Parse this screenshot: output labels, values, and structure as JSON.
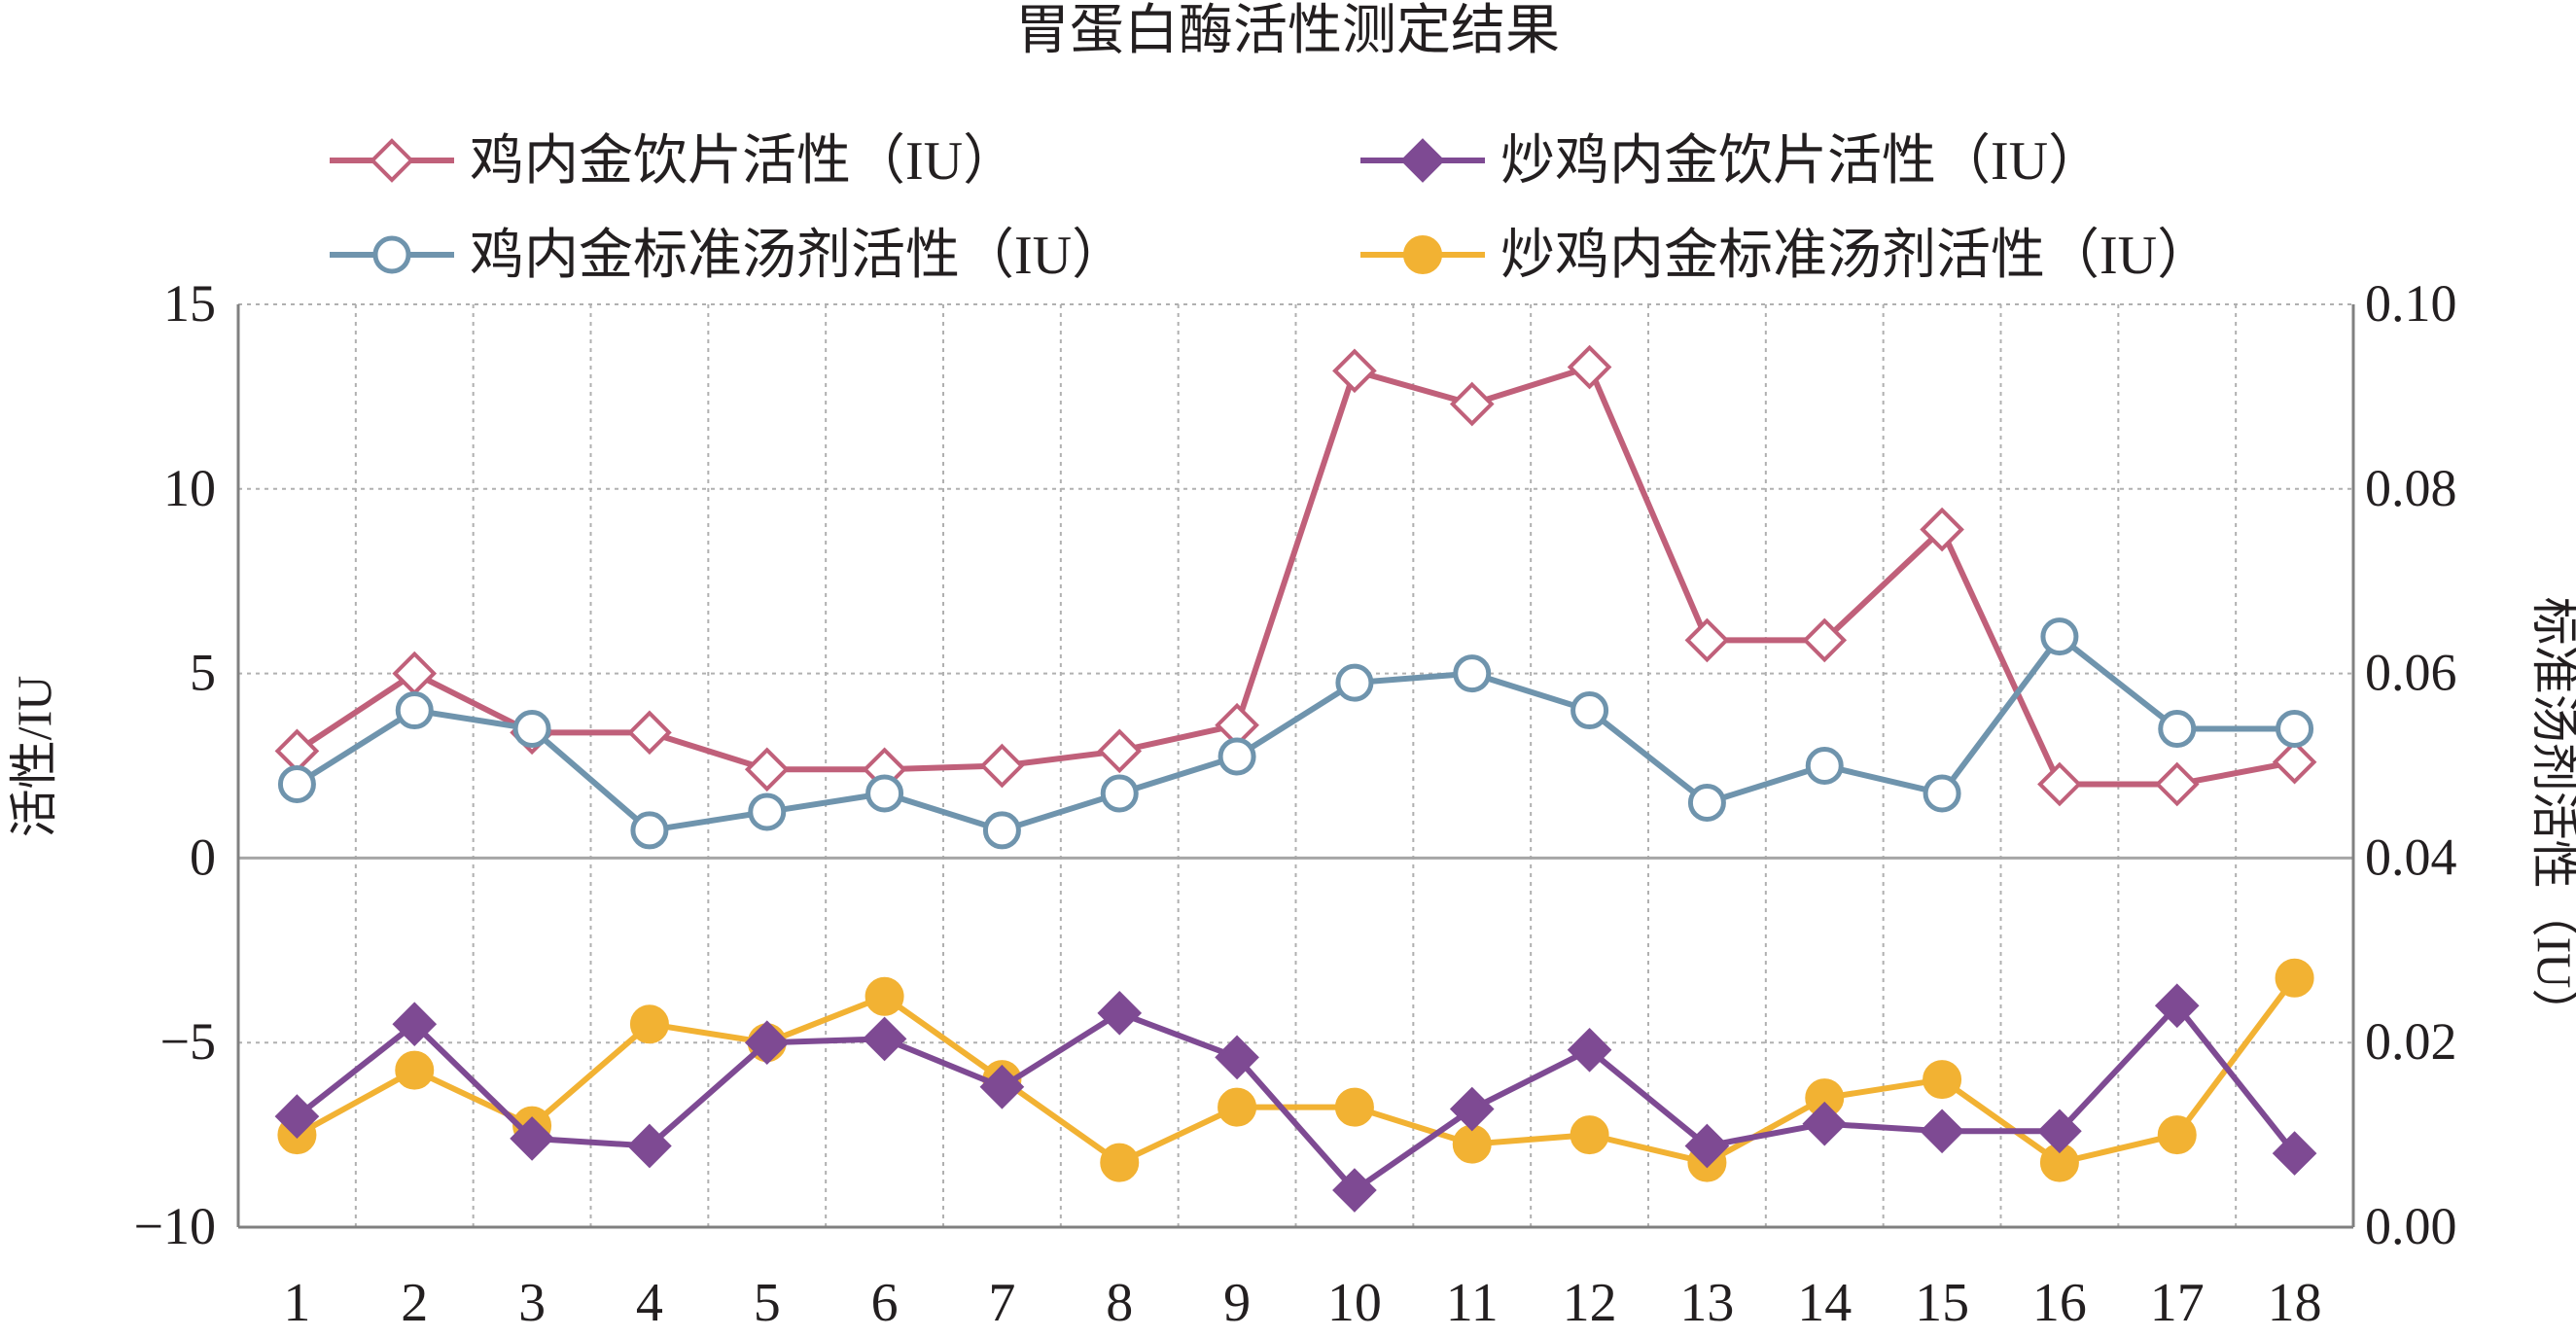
{
  "chart_data": {
    "type": "line",
    "title": "胃蛋白酶活性测定结果",
    "ylabel": "活性/IU",
    "y2label": "标准汤剂活性（IU）",
    "xlabel": "",
    "categories": [
      "1",
      "2",
      "3",
      "4",
      "5",
      "6",
      "7",
      "8",
      "9",
      "10",
      "11",
      "12",
      "13",
      "14",
      "15",
      "16",
      "17",
      "18"
    ],
    "ylim": [
      -10,
      15
    ],
    "yticks": [
      15,
      10,
      5,
      0,
      -5,
      -10
    ],
    "ytick_labels": [
      "15",
      "10",
      "5",
      "0",
      "−5",
      "−10"
    ],
    "y2lim": [
      0.0,
      0.1
    ],
    "y2ticks": [
      0.1,
      0.08,
      0.06,
      0.04,
      0.02,
      0.0
    ],
    "y2tick_labels": [
      "0.10",
      "0.08",
      "0.06",
      "0.04",
      "0.02",
      "0.00"
    ],
    "grid": true,
    "legend_position": "top",
    "series": [
      {
        "name": "鸡内金饮片活性（IU）",
        "axis": "left",
        "marker": "diamond-open",
        "color": "#c0607a",
        "values": [
          2.9,
          5.0,
          3.4,
          3.4,
          2.4,
          2.4,
          2.5,
          2.9,
          3.6,
          13.2,
          12.3,
          13.3,
          5.9,
          5.9,
          8.9,
          2.0,
          2.0,
          2.6
        ]
      },
      {
        "name": "炒鸡内金饮片活性（IU）",
        "axis": "left",
        "marker": "diamond-filled",
        "color": "#7e4a93",
        "values": [
          -7.0,
          -4.5,
          -7.6,
          -7.8,
          -5.0,
          -4.9,
          -6.2,
          -4.2,
          -5.4,
          -9.0,
          -6.8,
          -5.2,
          -7.8,
          -7.2,
          -7.4,
          -7.4,
          -4.0,
          -8.0
        ]
      },
      {
        "name": "鸡内金标准汤剂活性（IU）",
        "axis": "right",
        "marker": "circle-open",
        "color": "#6f94ad",
        "values": [
          0.048,
          0.056,
          0.054,
          0.043,
          0.045,
          0.047,
          0.043,
          0.047,
          0.051,
          0.059,
          0.06,
          0.056,
          0.046,
          0.05,
          0.047,
          0.064,
          0.054,
          0.054
        ]
      },
      {
        "name": "炒鸡内金标准汤剂活性（IU）",
        "axis": "right",
        "marker": "circle-filled",
        "color": "#f2b233",
        "values": [
          0.01,
          0.017,
          0.011,
          0.022,
          0.02,
          0.025,
          0.016,
          0.007,
          0.013,
          0.013,
          0.009,
          0.01,
          0.007,
          0.014,
          0.016,
          0.007,
          0.01,
          0.027
        ]
      }
    ]
  }
}
